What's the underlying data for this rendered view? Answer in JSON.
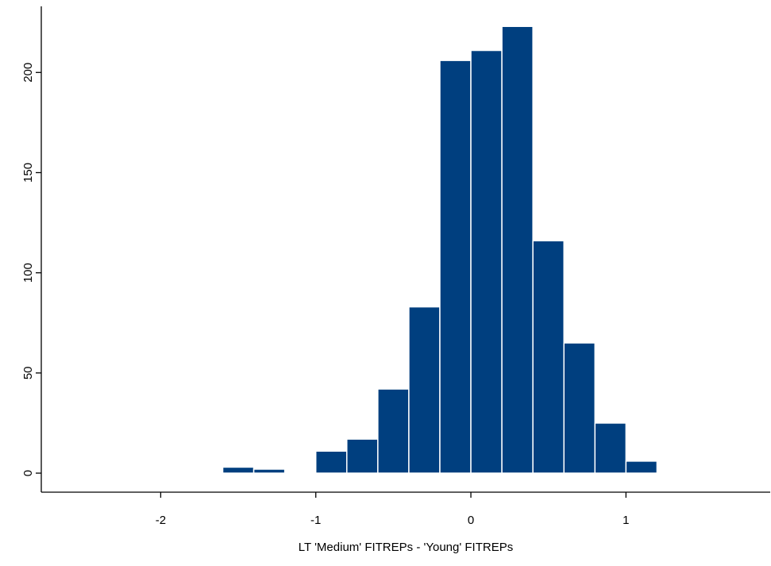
{
  "chart_data": {
    "type": "histogram",
    "xlabel": "LT 'Medium' FITREPs - 'Young' FITREPs",
    "bins": [
      -1.6,
      -1.4,
      -1.2,
      -1.0,
      -0.8,
      -0.6,
      -0.4,
      -0.2,
      0,
      0.2,
      0.4,
      0.6,
      0.8,
      1.0,
      1.2
    ],
    "values": [
      3,
      2,
      0,
      11,
      17,
      42,
      83,
      206,
      211,
      223,
      116,
      65,
      25,
      6
    ],
    "color": "#003f7f",
    "xlim": [
      -2.77,
      1.93
    ],
    "xticks": [
      -2,
      -1,
      0,
      1
    ],
    "ylim": [
      -9.5,
      233
    ],
    "yticks": [
      0,
      50,
      100,
      150,
      200
    ]
  }
}
